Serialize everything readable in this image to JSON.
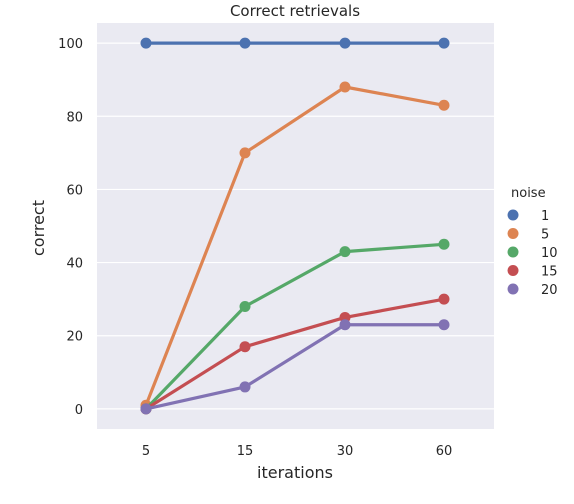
{
  "chart_data": {
    "type": "line",
    "title": "Correct retrievals",
    "xlabel": "iterations",
    "ylabel": "correct",
    "categories": [
      "5",
      "15",
      "30",
      "60"
    ],
    "ylim": [
      -5.5,
      105.5
    ],
    "yticks": [
      0,
      20,
      40,
      60,
      80,
      100
    ],
    "grid": true,
    "legend_title": "noise",
    "legend_position": "right",
    "series": [
      {
        "name": "1",
        "color": "#4c72b0",
        "values": [
          100,
          100,
          100,
          100
        ]
      },
      {
        "name": "5",
        "color": "#dd8452",
        "values": [
          1,
          70,
          88,
          83
        ]
      },
      {
        "name": "10",
        "color": "#55a868",
        "values": [
          0,
          28,
          43,
          45
        ]
      },
      {
        "name": "15",
        "color": "#c44e52",
        "values": [
          0,
          17,
          25,
          30
        ]
      },
      {
        "name": "20",
        "color": "#8172b3",
        "values": [
          0,
          6,
          23,
          23
        ]
      }
    ]
  }
}
